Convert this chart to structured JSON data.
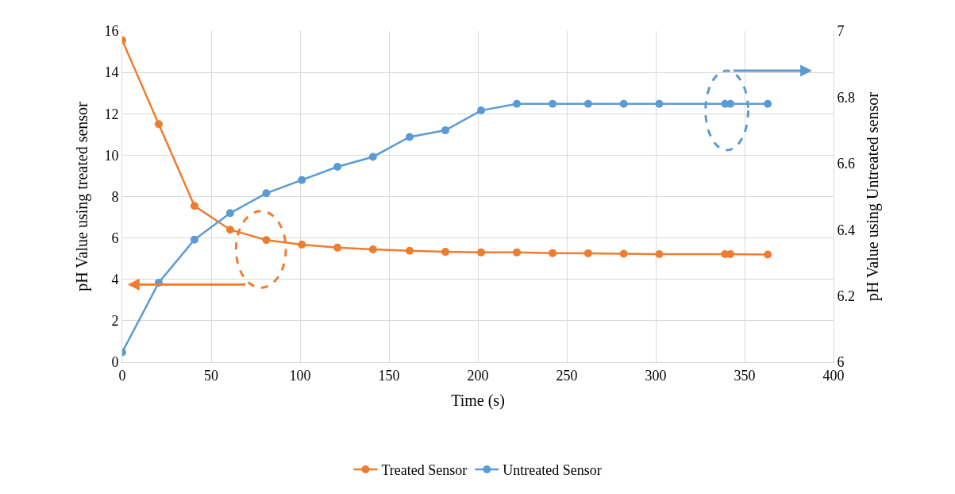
{
  "chart_data": {
    "type": "line",
    "xlabel": "Time (s)",
    "ylabel": "pH Value using treated sensor",
    "y2label": "pH Value using Untreated sensor",
    "x": [
      0,
      20.5,
      40.6,
      60.7,
      81,
      101,
      121,
      141,
      161.6,
      181.7,
      201.8,
      221.9,
      242,
      262,
      282,
      302,
      339,
      342,
      363
    ],
    "series": [
      {
        "name": "Treated Sensor",
        "color": "#ed7d31",
        "values": [
          15.55,
          11.5,
          7.55,
          6.4,
          5.9,
          5.68,
          5.53,
          5.45,
          5.38,
          5.33,
          5.3,
          5.3,
          5.27,
          5.26,
          5.24,
          5.22,
          5.22,
          5.22,
          5.2
        ]
      },
      {
        "name": "Untreated Sensor",
        "color": "#5b9bd5",
        "axis": "y2",
        "values": [
          6.03,
          6.24,
          6.37,
          6.45,
          6.51,
          6.55,
          6.59,
          6.62,
          6.68,
          6.7,
          6.76,
          6.78,
          6.78,
          6.78,
          6.78,
          6.78,
          6.78,
          6.78,
          6.78
        ]
      }
    ],
    "xlim": [
      0,
      400
    ],
    "xticks": [
      0,
      50,
      100,
      150,
      200,
      250,
      300,
      350,
      400
    ],
    "ylim": [
      0,
      16
    ],
    "yticks": [
      0,
      2,
      4,
      6,
      8,
      10,
      12,
      14,
      16
    ],
    "y2lim": [
      6,
      7
    ],
    "y2ticks": [
      6,
      6.2,
      6.4,
      6.6,
      6.8,
      7
    ],
    "grid": true,
    "legend": "bottom",
    "marker": "circle",
    "line_style": "solid"
  }
}
